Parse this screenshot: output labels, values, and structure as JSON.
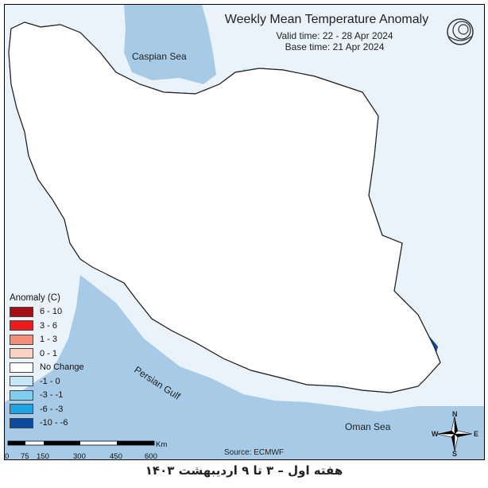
{
  "map": {
    "title": "Weekly Mean Temperature Anomaly",
    "valid_time": "Valid time: 22 - 28 Apr 2024",
    "base_time": "Base time: 21 Apr 2024",
    "source": "Source: ECMWF",
    "footer": "هفته اول – ۳ تا ۹ اردیبهشت ۱۴۰۳",
    "labels": {
      "caspian": "Caspian Sea",
      "gulf": "Persian Gulf",
      "oman": "Oman Sea"
    },
    "scale_bar": {
      "ticks": [
        "0",
        "75",
        "150",
        "300",
        "450",
        "600"
      ],
      "unit": "Km"
    },
    "compass": {
      "n": "N",
      "s": "S",
      "e": "E",
      "w": "W"
    }
  },
  "legend": {
    "title": "Anomaly (C)",
    "items": [
      {
        "label": "6 - 10",
        "color": "#a50f15"
      },
      {
        "label": "3 - 6",
        "color": "#ef1c1c"
      },
      {
        "label": "1 - 3",
        "color": "#f4907a"
      },
      {
        "label": "0 - 1",
        "color": "#fbd3c3"
      },
      {
        "label": "No Change",
        "color": "#ffffff"
      },
      {
        "label": "-1 - 0",
        "color": "#c6e6f8"
      },
      {
        "label": "-3 - -1",
        "color": "#7fcdf0"
      },
      {
        "label": "-6 - -3",
        "color": "#1fa5e6"
      },
      {
        "label": "-10 - -6",
        "color": "#0c4a9e"
      }
    ]
  }
}
